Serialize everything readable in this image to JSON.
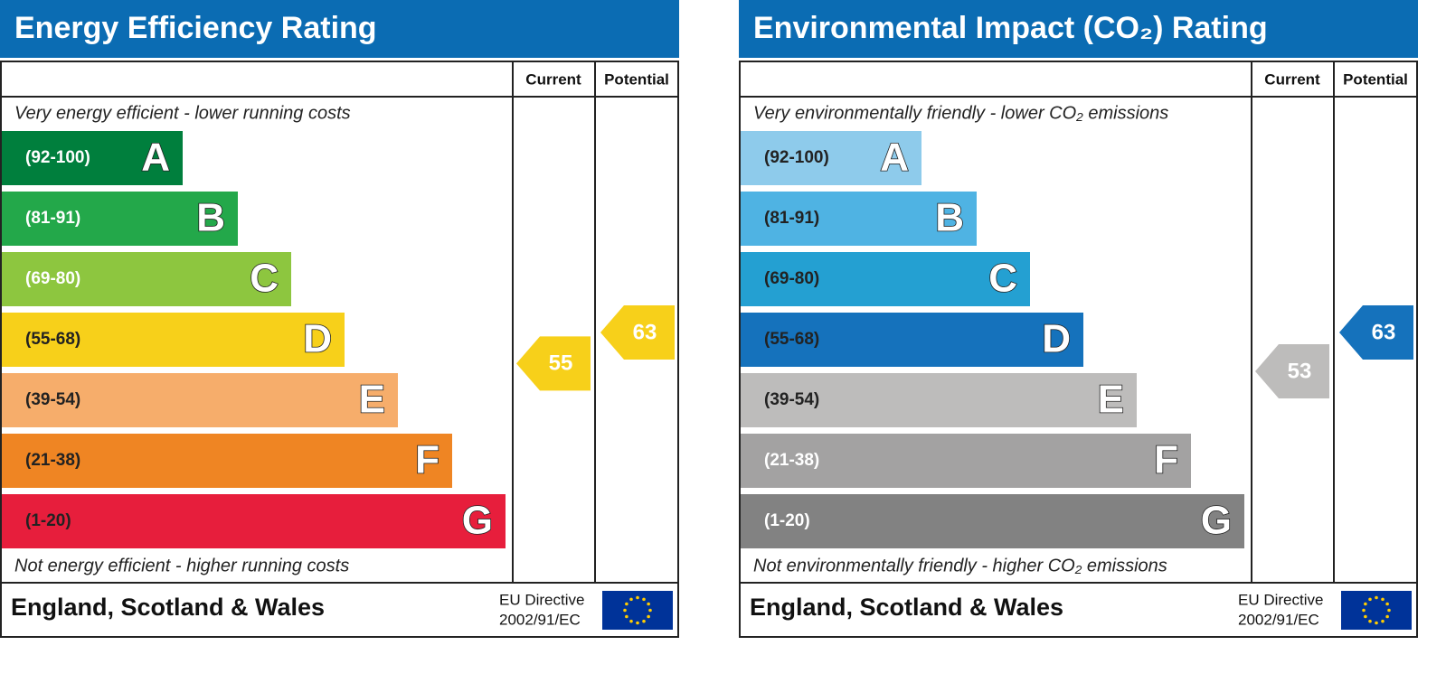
{
  "panels": [
    {
      "title": "Energy Efficiency Rating",
      "columns": [
        "Current",
        "Potential"
      ],
      "top_note": "Very energy efficient - lower running costs",
      "bottom_note": "Not energy efficient - higher running costs",
      "bands": [
        {
          "range": "(92-100)",
          "letter": "A",
          "color": "#007f3d",
          "text_color": "#ffffff"
        },
        {
          "range": "(81-91)",
          "letter": "B",
          "color": "#23a84a",
          "text_color": "#ffffff"
        },
        {
          "range": "(69-80)",
          "letter": "C",
          "color": "#8dc63f",
          "text_color": "#ffffff"
        },
        {
          "range": "(55-68)",
          "letter": "D",
          "color": "#f7d01a",
          "text_color": "#222222"
        },
        {
          "range": "(39-54)",
          "letter": "E",
          "color": "#f6ad6b",
          "text_color": "#222222"
        },
        {
          "range": "(21-38)",
          "letter": "F",
          "color": "#ef8523",
          "text_color": "#222222"
        },
        {
          "range": "(1-20)",
          "letter": "G",
          "color": "#e71e3c",
          "text_color": "#222222"
        }
      ],
      "current": 55,
      "current_color": "#f7d01a",
      "potential": 63,
      "potential_color": "#f7d01a",
      "footer": "England, Scotland & Wales",
      "directive": [
        "EU Directive",
        "2002/91/EC"
      ]
    },
    {
      "title": "Environmental Impact (CO₂) Rating",
      "columns": [
        "Current",
        "Potential"
      ],
      "top_note": "Very environmentally friendly - lower CO₂ emissions",
      "bottom_note": "Not environmentally friendly - higher CO₂ emissions",
      "bands": [
        {
          "range": "(92-100)",
          "letter": "A",
          "color": "#8ecbeb",
          "text_color": "#222222"
        },
        {
          "range": "(81-91)",
          "letter": "B",
          "color": "#4fb3e3",
          "text_color": "#222222"
        },
        {
          "range": "(69-80)",
          "letter": "C",
          "color": "#24a0d2",
          "text_color": "#222222"
        },
        {
          "range": "(55-68)",
          "letter": "D",
          "color": "#1572bc",
          "text_color": "#222222"
        },
        {
          "range": "(39-54)",
          "letter": "E",
          "color": "#bdbcbb",
          "text_color": "#222222"
        },
        {
          "range": "(21-38)",
          "letter": "F",
          "color": "#a3a2a2",
          "text_color": "#ffffff"
        },
        {
          "range": "(1-20)",
          "letter": "G",
          "color": "#828282",
          "text_color": "#ffffff"
        }
      ],
      "current": 53,
      "current_color": "#bdbcbb",
      "potential": 63,
      "potential_color": "#1572bc",
      "footer": "England, Scotland & Wales",
      "directive": [
        "EU Directive",
        "2002/91/EC"
      ]
    }
  ]
}
